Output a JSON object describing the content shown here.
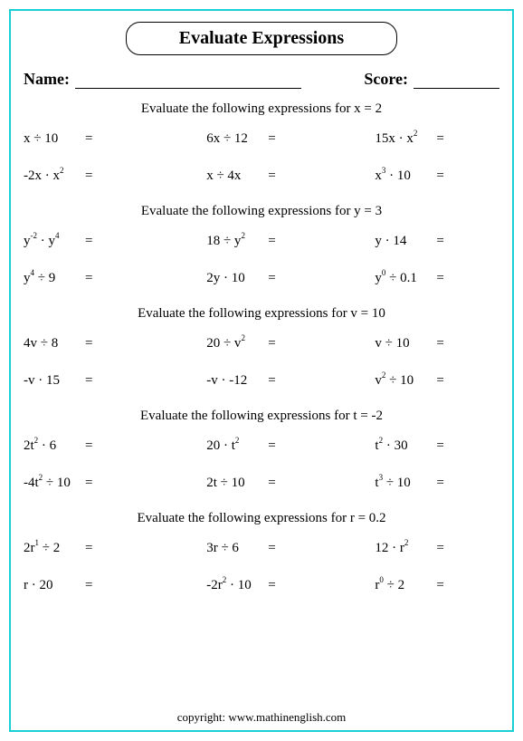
{
  "title": "Evaluate Expressions",
  "name_label": "Name:",
  "score_label": "Score:",
  "sections": [
    {
      "heading": "Evaluate the following expressions for x = 2",
      "rows": [
        [
          "x ÷ 10",
          "6x ÷ 12",
          "15x · x<sup>2</sup>"
        ],
        [
          "-2x · x<sup>2</sup>",
          "x ÷ 4x",
          "x<sup>3</sup> ·  10"
        ]
      ]
    },
    {
      "heading": "Evaluate the following expressions for y = 3",
      "rows": [
        [
          "y<sup>-2</sup> · y<sup>4</sup>",
          "18 ÷ y<sup>2</sup>",
          "y · 14"
        ],
        [
          "y<sup>4</sup> ÷ 9",
          "2y · 10",
          "y<sup>0</sup> ÷ 0.1"
        ]
      ]
    },
    {
      "heading": "Evaluate the following expressions for v = 10",
      "rows": [
        [
          "4v ÷ 8",
          "20 ÷ v<sup>2</sup>",
          "v ÷ 10"
        ],
        [
          "-v · 15",
          "-v · -12",
          "v<sup>2</sup> ÷ 10"
        ]
      ]
    },
    {
      "heading": "Evaluate the following expressions for t = -2",
      "rows": [
        [
          "2t<sup>2</sup> · 6",
          "20 · t<sup>2</sup>",
          "t<sup>2</sup> · 30"
        ],
        [
          "-4t<sup>2</sup> ÷ 10",
          "2t ÷ 10",
          "t<sup>3</sup> ÷  10"
        ]
      ]
    },
    {
      "heading": "Evaluate the following expressions for r = 0.2",
      "rows": [
        [
          "2r<sup>1</sup> ÷  2",
          "3r ÷ 6",
          "12 · r<sup>2</sup>"
        ],
        [
          "r · 20",
          "-2r<sup>2</sup> · 10",
          "r<sup>0</sup> ÷ 2"
        ]
      ]
    }
  ],
  "copyright": "copyright:   www.mathinenglish.com"
}
